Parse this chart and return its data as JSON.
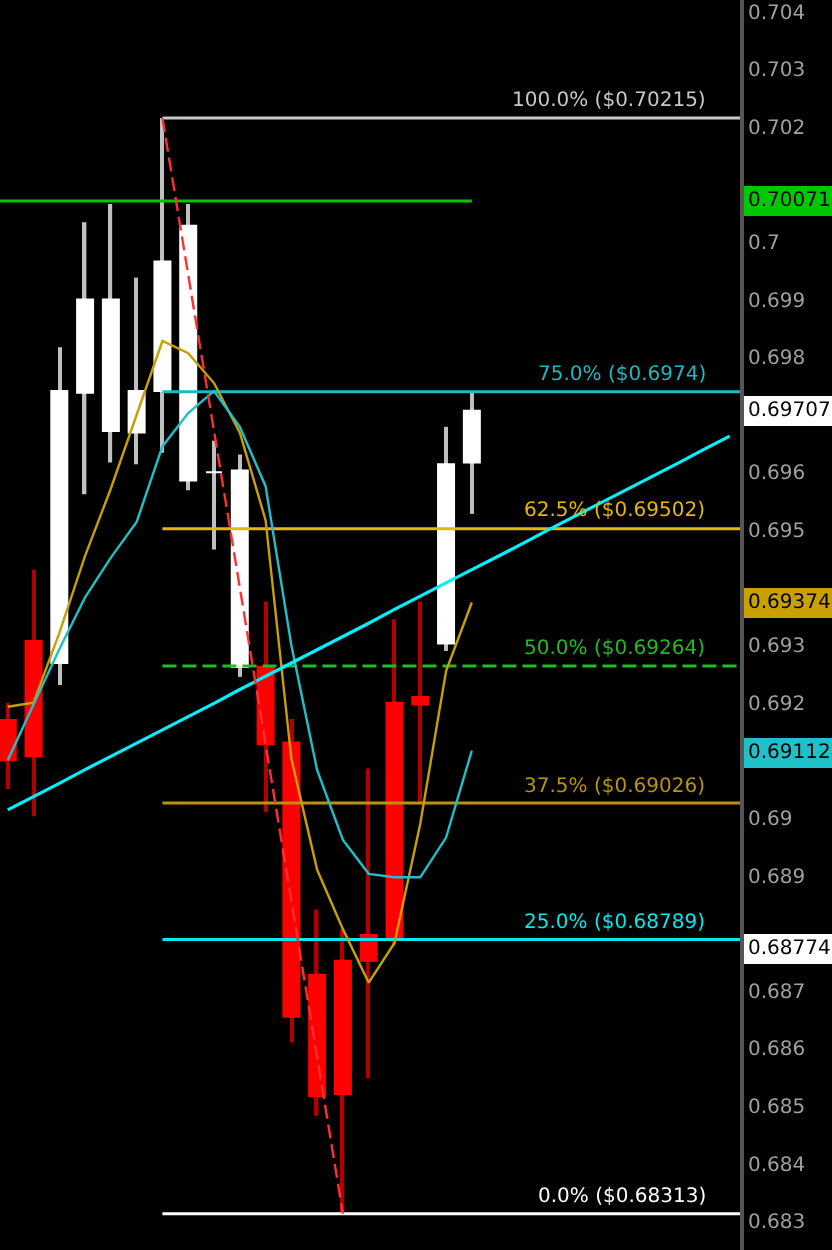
{
  "chart_data": {
    "type": "candlestick",
    "categories": [
      null,
      null,
      null,
      null,
      null,
      null,
      null,
      null,
      null,
      null,
      null,
      null,
      null,
      null,
      null,
      null,
      null,
      null,
      null,
      null,
      null,
      null,
      null,
      null,
      null,
      null,
      null,
      null,
      null
    ],
    "ohlc": [
      [
        0.6917,
        0.692,
        0.6905,
        0.691
      ],
      [
        0.69307,
        0.69431,
        0.69003,
        0.69107
      ],
      [
        0.69269,
        0.69817,
        0.69231,
        0.69741
      ],
      [
        0.69738,
        0.70034,
        0.69562,
        0.699
      ],
      [
        0.69672,
        0.70066,
        0.69617,
        0.699
      ],
      [
        0.69669,
        0.69938,
        0.69614,
        0.69741
      ],
      [
        0.69741,
        0.70215,
        0.69634,
        0.69966
      ],
      [
        0.69586,
        0.70066,
        0.69569,
        0.70028
      ],
      [
        0.696,
        0.69655,
        0.69466,
        0.696
      ],
      [
        0.69262,
        0.69631,
        0.69245,
        0.69603
      ],
      [
        0.69262,
        0.69376,
        0.6901,
        0.69128
      ],
      [
        0.69131,
        0.69172,
        0.6861,
        0.68655
      ],
      [
        0.68728,
        0.68841,
        0.68483,
        0.68517
      ],
      [
        0.68752,
        0.68807,
        0.68313,
        0.68521
      ],
      [
        0.68797,
        0.69086,
        0.68548,
        0.68752
      ],
      [
        0.692,
        0.69345,
        0.6878,
        0.6879
      ],
      [
        0.6921,
        0.69376,
        0.69028,
        0.69197
      ],
      [
        0.69303,
        0.69679,
        0.6929,
        0.69614
      ],
      [
        0.69617,
        0.69738,
        0.69528,
        0.69707
      ],
      null,
      null,
      null,
      null,
      null,
      null,
      null,
      null,
      null,
      null
    ],
    "series": [
      {
        "type": "line",
        "color": "#c8a000",
        "values": [
          0.69193,
          0.692,
          0.69321,
          0.69455,
          0.69572,
          0.697,
          0.69828,
          0.69807,
          0.69755,
          0.69669,
          0.69517,
          0.69103,
          0.6891,
          0.68807,
          0.68714,
          0.68783,
          0.6899,
          0.69255,
          0.69374,
          null,
          null,
          null,
          null,
          null,
          null,
          null,
          null,
          null,
          null
        ]
      },
      {
        "type": "line",
        "color": "#20c0c8",
        "values": [
          0.691,
          0.69197,
          0.69293,
          0.69383,
          0.69452,
          0.69514,
          0.69645,
          0.69703,
          0.69741,
          0.69679,
          0.69576,
          0.693,
          0.69083,
          0.68962,
          0.68903,
          0.68897,
          0.68897,
          0.68966,
          0.69117,
          null,
          null,
          null,
          null,
          null,
          null,
          null,
          null,
          null,
          null
        ]
      },
      {
        "type": "line",
        "color": "#00f0ff",
        "values": [
          0.69014,
          0.69037,
          0.6906,
          0.69084,
          0.69107,
          0.6913,
          0.69153,
          0.69176,
          0.69199,
          0.69223,
          0.69246,
          0.69269,
          0.69292,
          0.69315,
          0.69338,
          0.69362,
          0.69385,
          0.69408,
          0.69431,
          0.69454,
          0.69477,
          0.69501,
          0.69524,
          0.69547,
          0.6957,
          0.69593,
          0.69616,
          0.6964,
          0.69663
        ]
      },
      {
        "type": "line",
        "color": "#ff3030",
        "line_style": "dashed",
        "values": [
          null,
          null,
          null,
          null,
          null,
          null,
          0.70215,
          0.69943,
          0.69672,
          0.694,
          0.69128,
          0.68856,
          0.68585,
          0.68313,
          null,
          null,
          null,
          null,
          null,
          null,
          null,
          null,
          null,
          null,
          null,
          null,
          null,
          null,
          null
        ]
      }
    ],
    "ylim": [
      0.6825,
      0.7042
    ],
    "yticks": [
      0.683,
      0.684,
      0.685,
      0.686,
      0.687,
      0.689,
      0.69,
      0.692,
      0.693,
      0.695,
      0.696,
      0.698,
      0.699,
      0.7,
      0.702,
      0.703,
      0.704
    ],
    "tick_labels": "y",
    "ref_lines": [
      {
        "axis": "y",
        "value": 0.70071,
        "color": "#00c800"
      },
      {
        "axis": "y",
        "value": 0.70215,
        "label": "100.0% ($0.70215)",
        "color": "#c8c8c8"
      },
      {
        "axis": "y",
        "value": 0.6974,
        "label": "75.0% ($0.6974)",
        "color": "#1fb8c0"
      },
      {
        "axis": "y",
        "value": 0.69502,
        "label": "62.5% ($0.69502)",
        "color": "#e6b800"
      },
      {
        "axis": "y",
        "value": 0.69264,
        "label": "50.0% ($0.69264)",
        "color": "#22bb22",
        "line_style": "dashed"
      },
      {
        "axis": "y",
        "value": 0.69026,
        "label": "37.5% ($0.69026)",
        "color": "#b8930b"
      },
      {
        "axis": "y",
        "value": 0.68789,
        "label": "25.0% ($0.68789)",
        "color": "#00e8f0"
      },
      {
        "axis": "y",
        "value": 0.68313,
        "label": "0.0% ($0.68313)",
        "color": "#ffffff"
      }
    ],
    "annotations": [
      {
        "text": "0.70071",
        "y": 0.70071
      },
      {
        "text": "0.69707",
        "y": 0.69707
      },
      {
        "text": "0.69374",
        "y": 0.69374
      },
      {
        "text": "0.69112",
        "y": 0.69112
      },
      {
        "text": "0.68774",
        "y": 0.68774
      }
    ]
  }
}
